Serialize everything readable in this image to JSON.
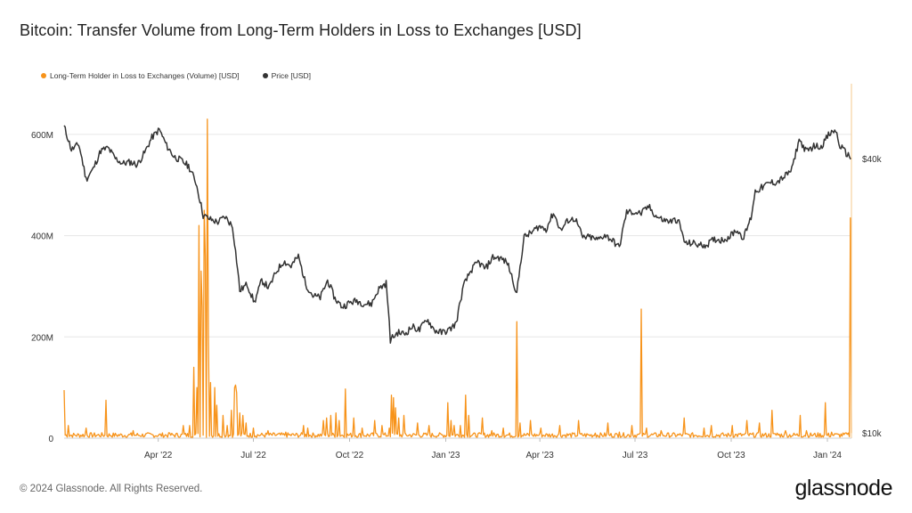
{
  "title": "Bitcoin: Transfer Volume from Long-Term Holders in Loss to Exchanges [USD]",
  "footer": "© 2024 Glassnode. All Rights Reserved.",
  "brand": "glassnode",
  "colors": {
    "volume": "#f7931a",
    "price": "#333333",
    "grid": "#e6e6e6"
  },
  "chart_data": {
    "type": "line",
    "legend": [
      {
        "label": "Long-Term Holder in Loss to Exchanges (Volume) [USD]",
        "color": "#f7931a"
      },
      {
        "label": "Price [USD]",
        "color": "#333333"
      }
    ],
    "x_ticks": [
      "Apr '22",
      "Jul '22",
      "Oct '22",
      "Jan '23",
      "Apr '23",
      "Jul '23",
      "Oct '23",
      "Jan '24"
    ],
    "x_tick_dates": [
      "2022-04-01",
      "2022-07-01",
      "2022-10-01",
      "2023-01-01",
      "2023-04-01",
      "2023-07-01",
      "2023-10-01",
      "2024-01-01"
    ],
    "x_range": [
      "2022-01-01",
      "2024-01-24"
    ],
    "y_left": {
      "ticks": [
        "0",
        "200M",
        "400M",
        "600M"
      ],
      "tick_values": [
        0,
        200,
        400,
        600
      ],
      "unit": "M",
      "range": [
        0,
        700
      ]
    },
    "y_right": {
      "ticks": [
        "$10k",
        "$40k"
      ],
      "tick_values": [
        10000,
        40000
      ],
      "scale": "log"
    },
    "grid": true,
    "legend_position": "top-left",
    "series": [
      {
        "name": "Price [USD]",
        "axis": "right",
        "points": [
          [
            "2022-01-01",
            47000
          ],
          [
            "2022-01-08",
            41800
          ],
          [
            "2022-01-15",
            43000
          ],
          [
            "2022-01-22",
            36000
          ],
          [
            "2022-01-29",
            38000
          ],
          [
            "2022-02-05",
            41600
          ],
          [
            "2022-02-12",
            42200
          ],
          [
            "2022-02-19",
            40000
          ],
          [
            "2022-02-26",
            39000
          ],
          [
            "2022-03-05",
            39300
          ],
          [
            "2022-03-12",
            38800
          ],
          [
            "2022-03-19",
            41200
          ],
          [
            "2022-03-26",
            44500
          ],
          [
            "2022-04-02",
            46300
          ],
          [
            "2022-04-09",
            42700
          ],
          [
            "2022-04-16",
            40400
          ],
          [
            "2022-04-23",
            39600
          ],
          [
            "2022-04-30",
            38500
          ],
          [
            "2022-05-07",
            35500
          ],
          [
            "2022-05-14",
            30000
          ],
          [
            "2022-05-21",
            29400
          ],
          [
            "2022-05-28",
            29000
          ],
          [
            "2022-06-04",
            29800
          ],
          [
            "2022-06-11",
            28400
          ],
          [
            "2022-06-18",
            20500
          ],
          [
            "2022-06-25",
            21200
          ],
          [
            "2022-07-02",
            19300
          ],
          [
            "2022-07-09",
            21600
          ],
          [
            "2022-07-16",
            20800
          ],
          [
            "2022-07-23",
            22600
          ],
          [
            "2022-07-30",
            23800
          ],
          [
            "2022-08-06",
            23200
          ],
          [
            "2022-08-13",
            24400
          ],
          [
            "2022-08-20",
            21200
          ],
          [
            "2022-08-27",
            20000
          ],
          [
            "2022-09-03",
            19800
          ],
          [
            "2022-09-10",
            21600
          ],
          [
            "2022-09-17",
            19700
          ],
          [
            "2022-09-24",
            18900
          ],
          [
            "2022-10-01",
            19300
          ],
          [
            "2022-10-08",
            19500
          ],
          [
            "2022-10-15",
            19200
          ],
          [
            "2022-10-22",
            19200
          ],
          [
            "2022-10-29",
            20700
          ],
          [
            "2022-11-05",
            21300
          ],
          [
            "2022-11-09",
            16000
          ],
          [
            "2022-11-16",
            16600
          ],
          [
            "2022-11-23",
            16500
          ],
          [
            "2022-11-30",
            17100
          ],
          [
            "2022-12-07",
            16800
          ],
          [
            "2022-12-14",
            17800
          ],
          [
            "2022-12-21",
            16800
          ],
          [
            "2022-12-28",
            16600
          ],
          [
            "2023-01-04",
            16800
          ],
          [
            "2023-01-11",
            17400
          ],
          [
            "2023-01-18",
            21000
          ],
          [
            "2023-01-25",
            22700
          ],
          [
            "2023-02-01",
            23700
          ],
          [
            "2023-02-08",
            22900
          ],
          [
            "2023-02-15",
            24300
          ],
          [
            "2023-02-22",
            24200
          ],
          [
            "2023-03-01",
            23600
          ],
          [
            "2023-03-10",
            20200
          ],
          [
            "2023-03-17",
            26900
          ],
          [
            "2023-03-24",
            27500
          ],
          [
            "2023-03-31",
            28400
          ],
          [
            "2023-04-07",
            28000
          ],
          [
            "2023-04-14",
            30400
          ],
          [
            "2023-04-21",
            27800
          ],
          [
            "2023-04-28",
            29300
          ],
          [
            "2023-05-05",
            29500
          ],
          [
            "2023-05-12",
            26800
          ],
          [
            "2023-05-19",
            26900
          ],
          [
            "2023-05-26",
            26500
          ],
          [
            "2023-06-02",
            27200
          ],
          [
            "2023-06-09",
            26500
          ],
          [
            "2023-06-16",
            25500
          ],
          [
            "2023-06-23",
            30500
          ],
          [
            "2023-06-30",
            30500
          ],
          [
            "2023-07-07",
            30300
          ],
          [
            "2023-07-14",
            31400
          ],
          [
            "2023-07-21",
            29900
          ],
          [
            "2023-07-28",
            29300
          ],
          [
            "2023-08-04",
            29100
          ],
          [
            "2023-08-11",
            29400
          ],
          [
            "2023-08-18",
            26000
          ],
          [
            "2023-08-25",
            26100
          ],
          [
            "2023-09-01",
            25800
          ],
          [
            "2023-09-08",
            25900
          ],
          [
            "2023-09-15",
            26600
          ],
          [
            "2023-09-22",
            26500
          ],
          [
            "2023-09-29",
            26900
          ],
          [
            "2023-10-06",
            27900
          ],
          [
            "2023-10-13",
            26800
          ],
          [
            "2023-10-20",
            29700
          ],
          [
            "2023-10-24",
            33900
          ],
          [
            "2023-10-31",
            34600
          ],
          [
            "2023-11-07",
            35400
          ],
          [
            "2023-11-14",
            35500
          ],
          [
            "2023-11-21",
            36500
          ],
          [
            "2023-11-28",
            37800
          ],
          [
            "2023-12-05",
            44000
          ],
          [
            "2023-12-12",
            41400
          ],
          [
            "2023-12-19",
            42600
          ],
          [
            "2023-12-26",
            42500
          ],
          [
            "2024-01-02",
            45000
          ],
          [
            "2024-01-09",
            46200
          ],
          [
            "2024-01-12",
            43000
          ],
          [
            "2024-01-18",
            41300
          ],
          [
            "2024-01-24",
            40000
          ]
        ]
      },
      {
        "name": "Long-Term Holder in Loss to Exchanges (Volume) [USD]",
        "axis": "left",
        "unit": "M",
        "baseline": 6,
        "spikes": [
          [
            "2022-01-01",
            95
          ],
          [
            "2022-01-05",
            25
          ],
          [
            "2022-01-22",
            20
          ],
          [
            "2022-02-10",
            75
          ],
          [
            "2022-03-08",
            15
          ],
          [
            "2022-04-12",
            10
          ],
          [
            "2022-04-25",
            25
          ],
          [
            "2022-05-01",
            25
          ],
          [
            "2022-05-05",
            140
          ],
          [
            "2022-05-08",
            100
          ],
          [
            "2022-05-10",
            420
          ],
          [
            "2022-05-12",
            330
          ],
          [
            "2022-05-13",
            260
          ],
          [
            "2022-05-15",
            450
          ],
          [
            "2022-05-16",
            360
          ],
          [
            "2022-05-18",
            630
          ],
          [
            "2022-05-19",
            200
          ],
          [
            "2022-05-21",
            110
          ],
          [
            "2022-05-25",
            100
          ],
          [
            "2022-05-27",
            65
          ],
          [
            "2022-06-02",
            45
          ],
          [
            "2022-06-06",
            25
          ],
          [
            "2022-06-10",
            55
          ],
          [
            "2022-06-13",
            100
          ],
          [
            "2022-06-14",
            105
          ],
          [
            "2022-06-15",
            90
          ],
          [
            "2022-06-18",
            50
          ],
          [
            "2022-06-21",
            45
          ],
          [
            "2022-06-24",
            30
          ],
          [
            "2022-07-01",
            20
          ],
          [
            "2022-07-15",
            15
          ],
          [
            "2022-08-01",
            12
          ],
          [
            "2022-08-18",
            25
          ],
          [
            "2022-08-22",
            20
          ],
          [
            "2022-09-06",
            35
          ],
          [
            "2022-09-09",
            40
          ],
          [
            "2022-09-13",
            45
          ],
          [
            "2022-09-18",
            50
          ],
          [
            "2022-09-21",
            35
          ],
          [
            "2022-09-27",
            97
          ],
          [
            "2022-10-05",
            40
          ],
          [
            "2022-10-13",
            20
          ],
          [
            "2022-10-25",
            35
          ],
          [
            "2022-11-01",
            25
          ],
          [
            "2022-11-08",
            20
          ],
          [
            "2022-11-10",
            85
          ],
          [
            "2022-11-12",
            80
          ],
          [
            "2022-11-14",
            60
          ],
          [
            "2022-11-17",
            40
          ],
          [
            "2022-11-22",
            45
          ],
          [
            "2022-12-05",
            30
          ],
          [
            "2022-12-16",
            25
          ],
          [
            "2023-01-03",
            70
          ],
          [
            "2023-01-06",
            35
          ],
          [
            "2023-01-09",
            25
          ],
          [
            "2023-01-15",
            25
          ],
          [
            "2023-01-20",
            85
          ],
          [
            "2023-01-23",
            45
          ],
          [
            "2023-02-05",
            40
          ],
          [
            "2023-02-14",
            15
          ],
          [
            "2023-02-25",
            20
          ],
          [
            "2023-03-10",
            230
          ],
          [
            "2023-03-13",
            30
          ],
          [
            "2023-03-23",
            35
          ],
          [
            "2023-04-02",
            20
          ],
          [
            "2023-04-20",
            25
          ],
          [
            "2023-05-08",
            35
          ],
          [
            "2023-05-24",
            10
          ],
          [
            "2023-06-05",
            30
          ],
          [
            "2023-06-16",
            12
          ],
          [
            "2023-06-28",
            25
          ],
          [
            "2023-07-07",
            255
          ],
          [
            "2023-07-12",
            20
          ],
          [
            "2023-07-26",
            15
          ],
          [
            "2023-08-17",
            40
          ],
          [
            "2023-09-05",
            20
          ],
          [
            "2023-09-12",
            25
          ],
          [
            "2023-10-02",
            25
          ],
          [
            "2023-10-16",
            35
          ],
          [
            "2023-10-28",
            30
          ],
          [
            "2023-11-09",
            55
          ],
          [
            "2023-11-14",
            10
          ],
          [
            "2023-11-22",
            15
          ],
          [
            "2023-12-06",
            45
          ],
          [
            "2023-12-12",
            15
          ],
          [
            "2023-12-30",
            70
          ],
          [
            "2024-01-05",
            12
          ],
          [
            "2024-01-12",
            8
          ],
          [
            "2024-01-18",
            10
          ],
          [
            "2024-01-23",
            435
          ],
          [
            "2024-01-24",
            10
          ]
        ]
      }
    ]
  }
}
